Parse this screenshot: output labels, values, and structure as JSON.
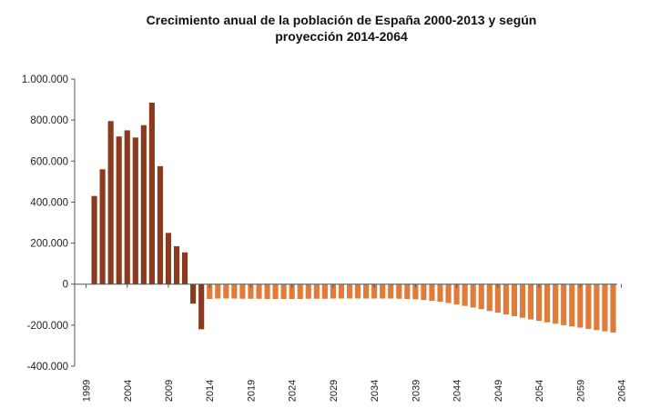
{
  "chart_data": {
    "type": "bar",
    "title_line1": "Crecimiento anual de la población de España 2000-2013 y según",
    "title_line2": "proyección 2014-2064",
    "xlabel": "",
    "ylabel": "",
    "ylim": [
      -400000,
      1000000
    ],
    "yticks": [
      -400000,
      -200000,
      0,
      200000,
      400000,
      600000,
      800000,
      1000000
    ],
    "ytick_labels": [
      "-400.000",
      "-200.000",
      "0",
      "200.000",
      "400.000",
      "600.000",
      "800.000",
      "1.000.000"
    ],
    "xticks": [
      "1999",
      "2004",
      "2009",
      "2014",
      "2019",
      "2024",
      "2029",
      "2034",
      "2039",
      "2044",
      "2049",
      "2054",
      "2059",
      "2064"
    ],
    "x_first_year": 2000,
    "grid": false,
    "colors": {
      "historical": "#8B3A1E",
      "projection": "#E07B39",
      "axis": "#555555"
    },
    "series": [
      {
        "period": "2000-2013",
        "x": [
          2000,
          2001,
          2002,
          2003,
          2004,
          2005,
          2006,
          2007,
          2008,
          2009,
          2010,
          2011,
          2012,
          2013
        ],
        "values": [
          430000,
          560000,
          795000,
          720000,
          750000,
          715000,
          775000,
          885000,
          575000,
          250000,
          185000,
          155000,
          -95000,
          -220000
        ]
      },
      {
        "period": "2014-2064",
        "x": [
          2014,
          2015,
          2016,
          2017,
          2018,
          2019,
          2020,
          2021,
          2022,
          2023,
          2024,
          2025,
          2026,
          2027,
          2028,
          2029,
          2030,
          2031,
          2032,
          2033,
          2034,
          2035,
          2036,
          2037,
          2038,
          2039,
          2040,
          2041,
          2042,
          2043,
          2044,
          2045,
          2046,
          2047,
          2048,
          2049,
          2050,
          2051,
          2052,
          2053,
          2054,
          2055,
          2056,
          2057,
          2058,
          2059,
          2060,
          2061,
          2062,
          2063
        ],
        "values": [
          -72000,
          -70000,
          -70000,
          -70000,
          -71000,
          -71000,
          -71000,
          -72000,
          -72000,
          -72000,
          -72000,
          -72000,
          -71000,
          -71000,
          -71000,
          -70000,
          -70000,
          -70000,
          -70000,
          -70000,
          -70000,
          -70000,
          -70000,
          -71000,
          -72000,
          -74000,
          -77000,
          -81000,
          -86000,
          -92000,
          -99000,
          -106000,
          -114000,
          -122000,
          -131000,
          -139000,
          -148000,
          -156000,
          -164000,
          -172000,
          -179000,
          -186000,
          -193000,
          -200000,
          -206000,
          -212000,
          -218000,
          -224000,
          -230000,
          -236000
        ]
      }
    ]
  }
}
